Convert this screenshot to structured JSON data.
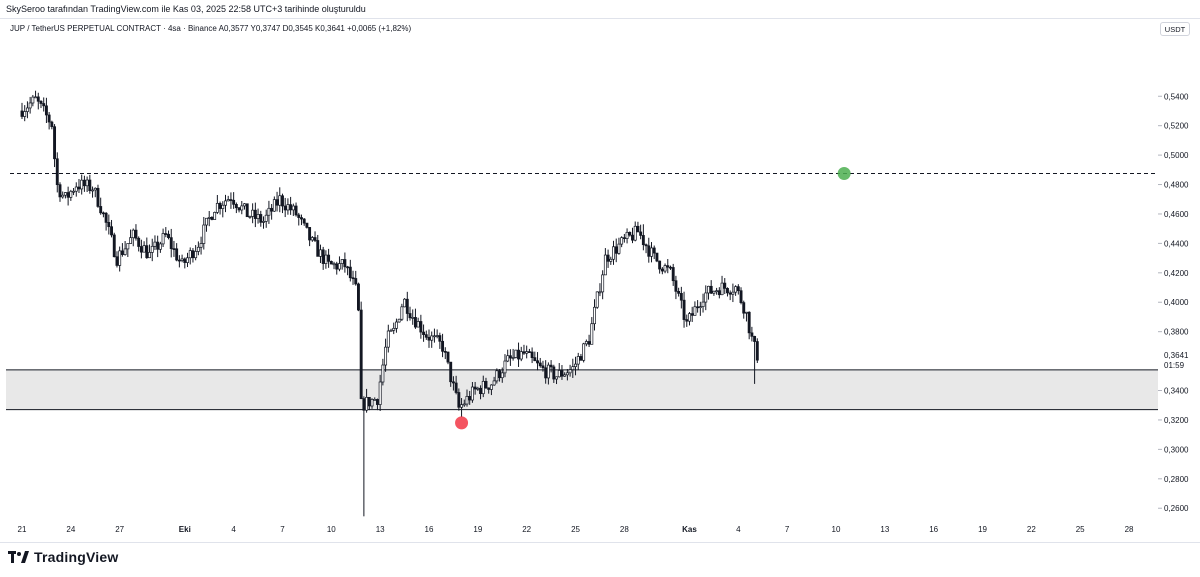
{
  "caption": "SkySeroo tarafından TradingView.com ile Kas 03, 2025 22:58 UTC+3 tarihinde oluşturuldu",
  "legend": "JUP / TetherUS PERPETUAL CONTRACT · 4sa · Binance  A0,3577  Y0,3747  D0,3545  K0,3641  +0,0065 (+1,82%)",
  "currency": "USDT",
  "brand": "TradingView",
  "colors": {
    "up": "#131722",
    "down": "#131722",
    "zone_fill": "#e8e8e8",
    "line": "#131722",
    "green_marker": "#4caf50",
    "red_marker": "#f23645"
  },
  "chart_data": {
    "type": "candlestick",
    "y_axis_ticks": [
      "0,5400",
      "0,5200",
      "0,5000",
      "0,4800",
      "0,4600",
      "0,4400",
      "0,4200",
      "0,4000",
      "0,3800",
      "0,3400",
      "0,3200",
      "0,3000",
      "0,2800",
      "0,2600"
    ],
    "y_range": [
      0.252,
      0.566
    ],
    "x_axis_ticks": [
      {
        "label": "21",
        "day": 0
      },
      {
        "label": "24",
        "day": 3
      },
      {
        "label": "27",
        "day": 6
      },
      {
        "label": "Eki",
        "day": 10
      },
      {
        "label": "4",
        "day": 13
      },
      {
        "label": "7",
        "day": 16
      },
      {
        "label": "10",
        "day": 19
      },
      {
        "label": "13",
        "day": 22
      },
      {
        "label": "16",
        "day": 25
      },
      {
        "label": "19",
        "day": 28
      },
      {
        "label": "22",
        "day": 31
      },
      {
        "label": "25",
        "day": 34
      },
      {
        "label": "28",
        "day": 37
      },
      {
        "label": "Kas",
        "day": 41
      },
      {
        "label": "4",
        "day": 44
      },
      {
        "label": "7",
        "day": 47
      },
      {
        "label": "10",
        "day": 50
      },
      {
        "label": "13",
        "day": 53
      },
      {
        "label": "16",
        "day": 56
      },
      {
        "label": "19",
        "day": 59
      },
      {
        "label": "22",
        "day": 62
      },
      {
        "label": "25",
        "day": 65
      },
      {
        "label": "28",
        "day": 68
      }
    ],
    "x_bold_labels": [
      "Eki",
      "Kas"
    ],
    "current_price": "0,3641",
    "countdown": "01:59",
    "support_zone": [
      0.327,
      0.354
    ],
    "resistance_line": 0.4875,
    "markers": [
      {
        "color": "green",
        "day": 50.5,
        "price": 0.4875
      },
      {
        "color": "red",
        "day": 27.0,
        "price": 0.318
      }
    ],
    "anchors": [
      [
        0,
        0.53
      ],
      [
        1,
        0.5375
      ],
      [
        2,
        0.521
      ],
      [
        2.3,
        0.48
      ],
      [
        2.8,
        0.47
      ],
      [
        3.5,
        0.48
      ],
      [
        4.5,
        0.478
      ],
      [
        5,
        0.465
      ],
      [
        6,
        0.43
      ],
      [
        7,
        0.445
      ],
      [
        8,
        0.432
      ],
      [
        9,
        0.445
      ],
      [
        10,
        0.425
      ],
      [
        11,
        0.44
      ],
      [
        12,
        0.465
      ],
      [
        13,
        0.472
      ],
      [
        14,
        0.46
      ],
      [
        15,
        0.455
      ],
      [
        16,
        0.47
      ],
      [
        17,
        0.46
      ],
      [
        18,
        0.44
      ],
      [
        19,
        0.425
      ],
      [
        20,
        0.425
      ],
      [
        20.8,
        0.405
      ],
      [
        21,
        0.33
      ],
      [
        22,
        0.335
      ],
      [
        22.6,
        0.375
      ],
      [
        23,
        0.38
      ],
      [
        23.6,
        0.402
      ],
      [
        24.2,
        0.39
      ],
      [
        25,
        0.378
      ],
      [
        26,
        0.37
      ],
      [
        27,
        0.328
      ],
      [
        28,
        0.34
      ],
      [
        29,
        0.345
      ],
      [
        30,
        0.36
      ],
      [
        31,
        0.365
      ],
      [
        32,
        0.355
      ],
      [
        33,
        0.35
      ],
      [
        34,
        0.355
      ],
      [
        35,
        0.375
      ],
      [
        36,
        0.43
      ],
      [
        37,
        0.44
      ],
      [
        38,
        0.448
      ],
      [
        39,
        0.43
      ],
      [
        40,
        0.42
      ],
      [
        41,
        0.385
      ],
      [
        42,
        0.405
      ],
      [
        43,
        0.41
      ],
      [
        44,
        0.41
      ],
      [
        44.6,
        0.395
      ],
      [
        45,
        0.375
      ],
      [
        45.3,
        0.364
      ]
    ],
    "wick_extremes": [
      {
        "day": 21.0,
        "low": 0.2545
      },
      {
        "day": 27.0,
        "low": 0.322
      },
      {
        "day": 1.3,
        "high": 0.5385
      },
      {
        "day": 38.2,
        "high": 0.453
      },
      {
        "day": 45.0,
        "low": 0.3445
      }
    ]
  }
}
